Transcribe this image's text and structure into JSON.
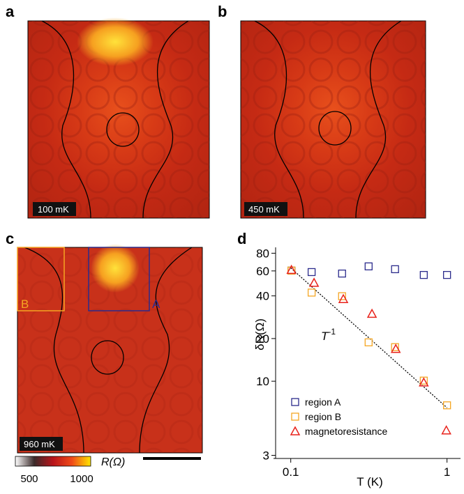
{
  "panels": {
    "a": {
      "letter": "a",
      "label": "100 mK"
    },
    "b": {
      "letter": "b",
      "label": "450 mK"
    },
    "c": {
      "letter": "c",
      "label": "960 mK",
      "region_a": "A",
      "region_b": "B"
    },
    "colorbar": {
      "min_label": "500",
      "max_label": "1000",
      "label": "R(Ω)"
    }
  },
  "chart_data": {
    "type": "scatter",
    "letter": "d",
    "x_label": "T (K)",
    "y_label": "δR(Ω)",
    "annotation": {
      "text": "T",
      "superscript": "-1"
    },
    "log_x": true,
    "log_y": true,
    "xlim": [
      0.08,
      1.22
    ],
    "xticks": [
      0.1,
      1
    ],
    "ylim": [
      2.95,
      88
    ],
    "yticks": [
      3,
      10,
      20,
      40,
      60,
      80
    ],
    "legend": "lower left",
    "series": [
      {
        "name": "region A",
        "color": "#2b2b8c",
        "marker": "square",
        "x": [
          0.101,
          0.136,
          0.213,
          0.315,
          0.465,
          0.71,
          1.0
        ],
        "values": [
          60.3,
          58.9,
          57.5,
          64.6,
          61.7,
          56.2,
          56.2
        ]
      },
      {
        "name": "region B",
        "color": "#f5a623",
        "marker": "square",
        "x": [
          0.101,
          0.136,
          0.213,
          0.315,
          0.465,
          0.71,
          1.0
        ],
        "values": [
          60.3,
          42.2,
          39.8,
          18.8,
          17.4,
          10.1,
          6.76
        ]
      },
      {
        "name": "magnetoresistance",
        "color": "#e8221b",
        "marker": "triangle",
        "x": [
          0.101,
          0.141,
          0.217,
          0.331,
          0.47,
          0.71,
          0.99
        ],
        "values": [
          61,
          49.5,
          38,
          29.9,
          16.9,
          9.8,
          4.5
        ]
      }
    ],
    "fit": {
      "x": [
        0.1,
        1
      ],
      "values": [
        63,
        6.5
      ]
    }
  }
}
